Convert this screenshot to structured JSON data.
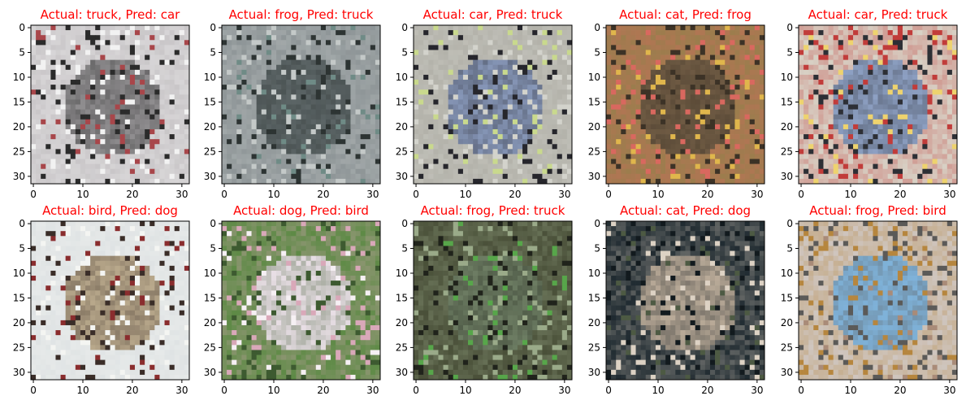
{
  "chart_data": {
    "type": "image-grid",
    "title_color": "#ff0000",
    "image_resolution": [
      32,
      32
    ],
    "axes": {
      "x_ticks": [
        0,
        10,
        20,
        30
      ],
      "y_ticks": [
        0,
        5,
        10,
        15,
        20,
        25,
        30
      ],
      "xlim": [
        -0.5,
        31.5
      ],
      "ylim": [
        31.5,
        -0.5
      ]
    },
    "panels": [
      {
        "title": "Actual: truck, Pred: car",
        "actual": "truck",
        "predicted": "car",
        "palette": {
          "bg": "#c9c6c8",
          "main": "#8f8d8f",
          "accent": "#f2f2f2",
          "dark": "#2b2b2b",
          "extra": "#a8464a"
        }
      },
      {
        "title": "Actual: frog, Pred: truck",
        "actual": "frog",
        "predicted": "truck",
        "palette": {
          "bg": "#8e9597",
          "main": "#5c6566",
          "accent": "#c4c9c8",
          "dark": "#2d3433",
          "extra": "#6f8b86"
        }
      },
      {
        "title": "Actual: car, Pred: truck",
        "actual": "car",
        "predicted": "truck",
        "palette": {
          "bg": "#b3b2aa",
          "main": "#8797b8",
          "accent": "#d3d3cc",
          "dark": "#26262c",
          "extra": "#c9d98d"
        }
      },
      {
        "title": "Actual: cat, Pred: frog",
        "actual": "cat",
        "predicted": "frog",
        "palette": {
          "bg": "#9b7d4d",
          "main": "#6e5a43",
          "accent": "#d9685f",
          "dark": "#3c3226",
          "extra": "#e0b64c"
        }
      },
      {
        "title": "Actual: car, Pred: truck",
        "actual": "car",
        "predicted": "truck",
        "palette": {
          "bg": "#d8d2c6",
          "main": "#8ea1c4",
          "accent": "#c13c3a",
          "dark": "#2d2f35",
          "extra": "#eed36e"
        }
      },
      {
        "title": "Actual: bird, Pred: dog",
        "actual": "bird",
        "predicted": "dog",
        "palette": {
          "bg": "#dfe3e4",
          "main": "#b9a98c",
          "accent": "#f4f5f2",
          "dark": "#3a2d28",
          "extra": "#8a2d2e"
        }
      },
      {
        "title": "Actual: dog, Pred: bird",
        "actual": "dog",
        "predicted": "bird",
        "palette": {
          "bg": "#5e8a46",
          "main": "#e9dfe6",
          "accent": "#d9a8b9",
          "dark": "#3d5a30",
          "extra": "#f6f0f4"
        }
      },
      {
        "title": "Actual: frog, Pred: truck",
        "actual": "frog",
        "predicted": "truck",
        "palette": {
          "bg": "#4a5039",
          "main": "#6d7d63",
          "accent": "#9aaa89",
          "dark": "#20231b",
          "extra": "#57a64a"
        }
      },
      {
        "title": "Actual: cat, Pred: dog",
        "actual": "cat",
        "predicted": "dog",
        "palette": {
          "bg": "#1f2a30",
          "main": "#b9aa98",
          "accent": "#ddd2c4",
          "dark": "#121a1e",
          "extra": "#4d5a43"
        }
      },
      {
        "title": "Actual: frog, Pred: bird",
        "actual": "frog",
        "predicted": "bird",
        "palette": {
          "bg": "#cfc6c0",
          "main": "#7fb2d9",
          "accent": "#b6863e",
          "dark": "#5b5a58",
          "extra": "#a98b78"
        }
      }
    ]
  }
}
